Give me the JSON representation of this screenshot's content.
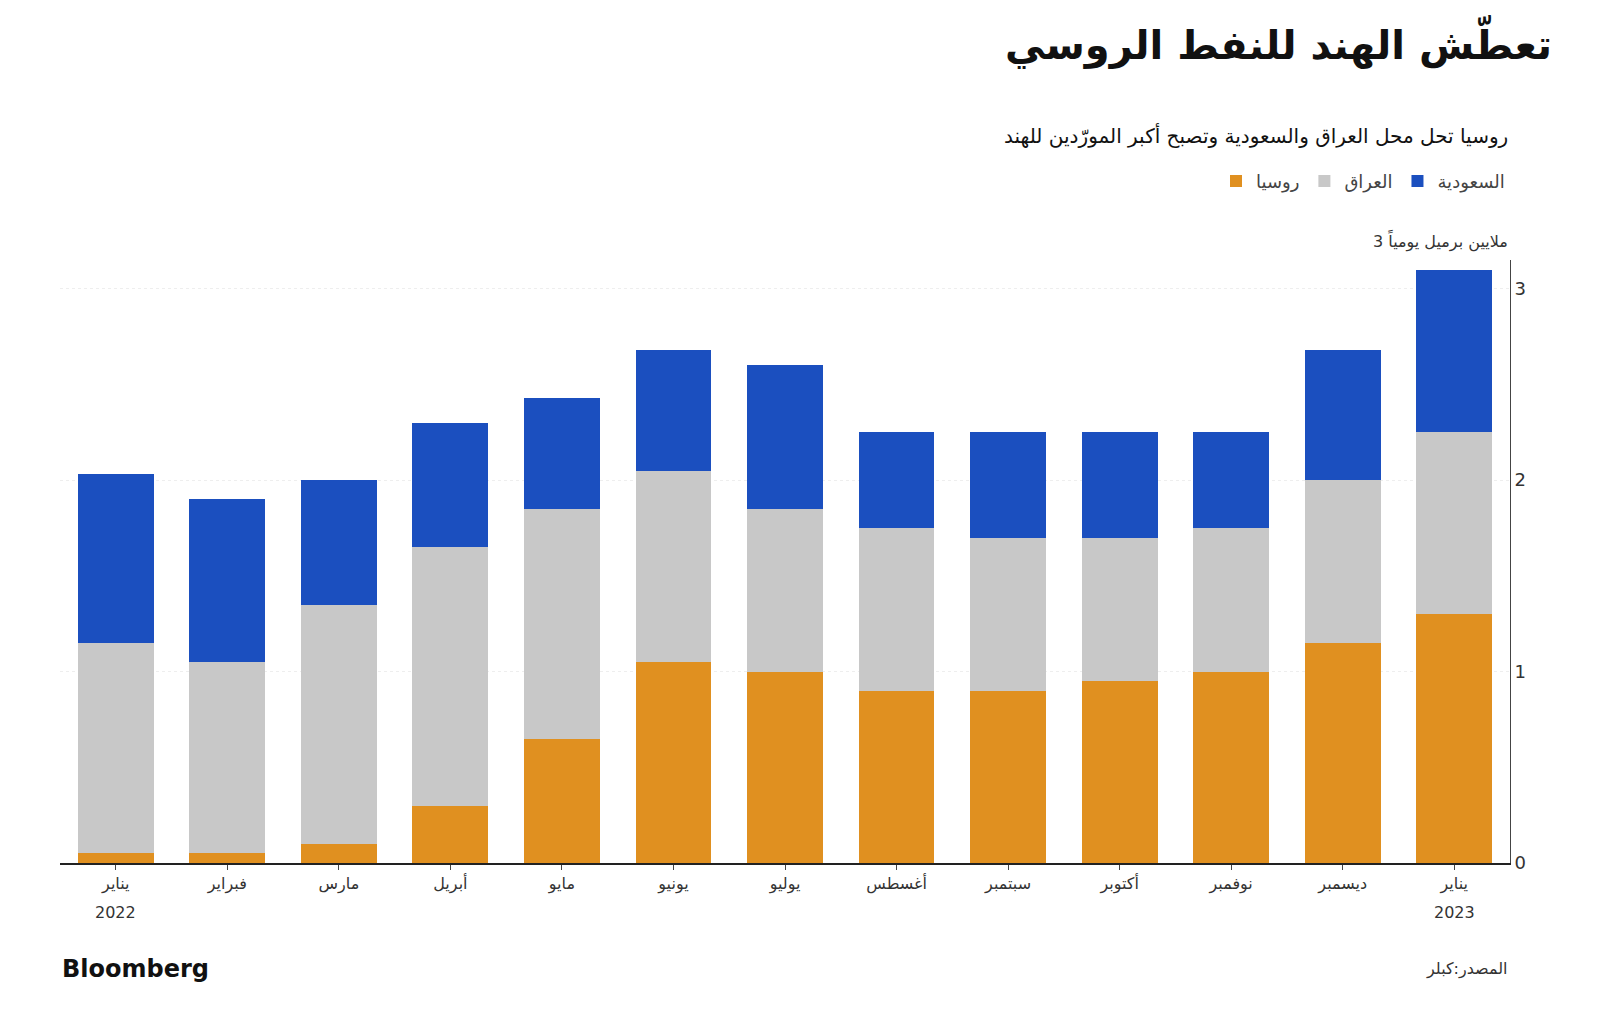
{
  "chart_data": {
    "type": "bar",
    "stacked": true,
    "title": "تعطّش الهند للنفط الروسي",
    "subtitle": "روسيا تحل محل العراق والسعودية وتصبح أكبر المورّدين للهند",
    "ylabel": "3 ملايين برميل يومياً",
    "categories": [
      "يناير",
      "فبراير",
      "مارس",
      "أبريل",
      "مايو",
      "يونيو",
      "يوليو",
      "أغسطس",
      "سبتمبر",
      "أكتوبر",
      "نوفمبر",
      "ديسمبر",
      "يناير"
    ],
    "series": [
      {
        "name": "روسيا",
        "color": "#E09020",
        "values": [
          0.05,
          0.05,
          0.1,
          0.3,
          0.65,
          1.05,
          1.0,
          0.9,
          0.9,
          0.95,
          1.0,
          1.15,
          1.3
        ]
      },
      {
        "name": "العراق",
        "color": "#C8C8C8",
        "values": [
          1.1,
          1.0,
          1.25,
          1.35,
          1.2,
          1.0,
          0.85,
          0.85,
          0.8,
          0.75,
          0.75,
          0.85,
          0.95
        ]
      },
      {
        "name": "السعودية",
        "color": "#1B4FBF",
        "values": [
          0.88,
          0.85,
          0.65,
          0.65,
          0.58,
          0.63,
          0.75,
          0.5,
          0.55,
          0.55,
          0.5,
          0.68,
          0.85
        ]
      }
    ],
    "ylim": [
      0,
      3.15
    ],
    "yticks": [
      0,
      1,
      2,
      3
    ],
    "grid": true,
    "legend": "upper right",
    "annotations": [
      "2022",
      "2023"
    ],
    "source": "المصدر:كبلر",
    "credit": "Bloomberg"
  }
}
